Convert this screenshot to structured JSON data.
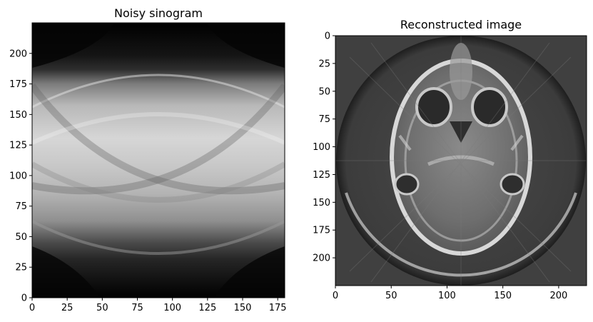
{
  "chart_data": [
    {
      "type": "heatmap",
      "title": "Noisy sinogram",
      "xlabel": "",
      "ylabel": "",
      "xlim": [
        0,
        180
      ],
      "ylim": [
        0,
        225
      ],
      "y_origin": "lower",
      "xticks": [
        "0",
        "25",
        "50",
        "75",
        "100",
        "125",
        "150",
        "175"
      ],
      "yticks": [
        "0",
        "25",
        "50",
        "75",
        "100",
        "125",
        "150",
        "175",
        "200"
      ],
      "colormap": "gray"
    },
    {
      "type": "heatmap",
      "title": "Reconstructed image",
      "xlabel": "",
      "ylabel": "",
      "xlim": [
        0,
        225
      ],
      "ylim": [
        225,
        0
      ],
      "y_origin": "upper",
      "xticks": [
        "0",
        "50",
        "100",
        "150",
        "200"
      ],
      "yticks": [
        "0",
        "25",
        "50",
        "75",
        "100",
        "125",
        "150",
        "175",
        "200"
      ],
      "colormap": "gray"
    }
  ]
}
